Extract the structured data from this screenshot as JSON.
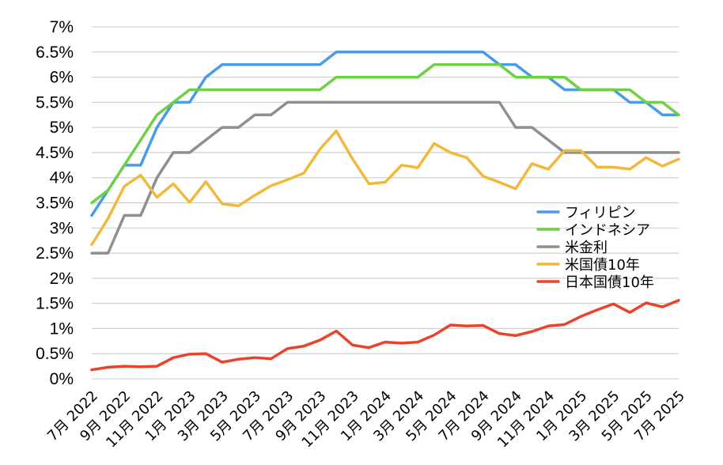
{
  "chart_data": {
    "type": "line",
    "title": "",
    "xlabel": "",
    "ylabel": "",
    "ylim": [
      0,
      7
    ],
    "grid": "horizontal",
    "legend_position": "right",
    "y_ticks": [
      "0%",
      "0.5%",
      "1%",
      "1.5%",
      "2%",
      "2.5%",
      "3%",
      "3.5%",
      "4%",
      "4.5%",
      "5%",
      "5.5%",
      "6%",
      "6.5%",
      "7%"
    ],
    "x_tick_labels": [
      "7月 2022",
      "9月 2022",
      "11月 2022",
      "1月 2023",
      "3月 2023",
      "5月 2023",
      "7月 2023",
      "9月 2023",
      "11月 2023",
      "1月 2024",
      "3月 2024",
      "5月 2024",
      "7月 2024",
      "9月 2024",
      "11月 2024",
      "1月 2025",
      "3月 2025",
      "5月 2025",
      "7月 2025"
    ],
    "x": [
      "2022-07",
      "2022-08",
      "2022-09",
      "2022-10",
      "2022-11",
      "2022-12",
      "2023-01",
      "2023-02",
      "2023-03",
      "2023-04",
      "2023-05",
      "2023-06",
      "2023-07",
      "2023-08",
      "2023-09",
      "2023-10",
      "2023-11",
      "2023-12",
      "2024-01",
      "2024-02",
      "2024-03",
      "2024-04",
      "2024-05",
      "2024-06",
      "2024-07",
      "2024-08",
      "2024-09",
      "2024-10",
      "2024-11",
      "2024-12",
      "2025-01",
      "2025-02",
      "2025-03",
      "2025-04",
      "2025-05",
      "2025-06",
      "2025-07"
    ],
    "series": [
      {
        "name": "フィリピン",
        "color": "#4a9be8",
        "values": [
          3.25,
          3.75,
          4.25,
          4.25,
          5.0,
          5.5,
          5.5,
          6.0,
          6.25,
          6.25,
          6.25,
          6.25,
          6.25,
          6.25,
          6.25,
          6.5,
          6.5,
          6.5,
          6.5,
          6.5,
          6.5,
          6.5,
          6.5,
          6.5,
          6.5,
          6.25,
          6.25,
          6.0,
          6.0,
          5.75,
          5.75,
          5.75,
          5.75,
          5.5,
          5.5,
          5.25,
          5.25
        ]
      },
      {
        "name": "インドネシア",
        "color": "#6fcf45",
        "values": [
          3.5,
          3.75,
          4.25,
          4.75,
          5.25,
          5.5,
          5.75,
          5.75,
          5.75,
          5.75,
          5.75,
          5.75,
          5.75,
          5.75,
          5.75,
          6.0,
          6.0,
          6.0,
          6.0,
          6.0,
          6.0,
          6.25,
          6.25,
          6.25,
          6.25,
          6.25,
          6.0,
          6.0,
          6.0,
          6.0,
          5.75,
          5.75,
          5.75,
          5.75,
          5.5,
          5.5,
          5.25
        ]
      },
      {
        "name": "米金利",
        "color": "#8f8f8f",
        "values": [
          2.5,
          2.5,
          3.25,
          3.25,
          4.0,
          4.5,
          4.5,
          4.75,
          5.0,
          5.0,
          5.25,
          5.25,
          5.5,
          5.5,
          5.5,
          5.5,
          5.5,
          5.5,
          5.5,
          5.5,
          5.5,
          5.5,
          5.5,
          5.5,
          5.5,
          5.5,
          5.0,
          5.0,
          4.75,
          4.5,
          4.5,
          4.5,
          4.5,
          4.5,
          4.5,
          4.5,
          4.5
        ]
      },
      {
        "name": "米国債10年",
        "color": "#f0b93b",
        "values": [
          2.67,
          3.19,
          3.83,
          4.05,
          3.61,
          3.88,
          3.51,
          3.92,
          3.48,
          3.44,
          3.65,
          3.84,
          3.96,
          4.09,
          4.57,
          4.93,
          4.37,
          3.88,
          3.91,
          4.25,
          4.2,
          4.68,
          4.5,
          4.4,
          4.03,
          3.91,
          3.78,
          4.28,
          4.17,
          4.54,
          4.54,
          4.21,
          4.21,
          4.17,
          4.4,
          4.23,
          4.37
        ]
      },
      {
        "name": "日本国債10年",
        "color": "#e8432c",
        "values": [
          0.18,
          0.23,
          0.25,
          0.24,
          0.25,
          0.42,
          0.49,
          0.5,
          0.33,
          0.39,
          0.42,
          0.4,
          0.6,
          0.65,
          0.77,
          0.95,
          0.67,
          0.62,
          0.73,
          0.71,
          0.73,
          0.87,
          1.07,
          1.05,
          1.06,
          0.9,
          0.86,
          0.94,
          1.05,
          1.08,
          1.24,
          1.37,
          1.49,
          1.32,
          1.51,
          1.43,
          1.56
        ]
      }
    ]
  }
}
